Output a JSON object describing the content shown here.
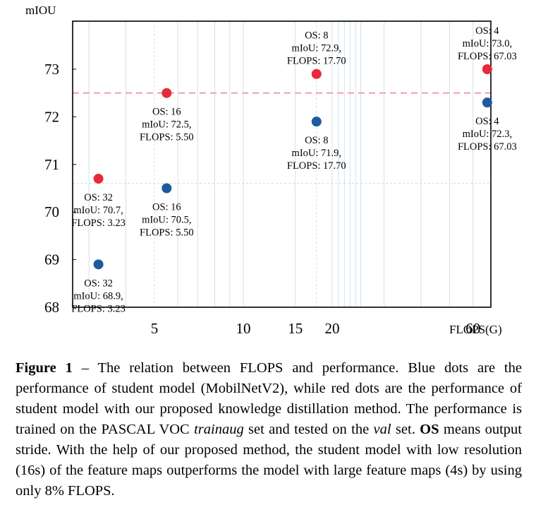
{
  "chart_data": {
    "type": "scatter",
    "ylabel": "mIOU",
    "xlabel": "FLOPS(G)",
    "ylim": [
      68,
      74
    ],
    "yticks": [
      "68",
      "69",
      "70",
      "71",
      "72",
      "73"
    ],
    "xticks": [
      "5",
      "10",
      "15",
      "20",
      "60"
    ],
    "grid": "light dashed",
    "colors": {
      "student": "#1f5aa0",
      "distilled": "#e8293a",
      "ref_line": "#f4a3a8",
      "grid": "#c4dcec"
    },
    "points": [
      {
        "series": "student",
        "x": 3.23,
        "y": 68.9,
        "label": [
          "OS: 32",
          "mIoU: 68.9,",
          "FLOPS: 3.23"
        ]
      },
      {
        "series": "distilled",
        "x": 3.23,
        "y": 70.7,
        "label": [
          "OS: 32",
          "mIoU: 70.7,",
          "FLOPS: 3.23"
        ]
      },
      {
        "series": "student",
        "x": 5.5,
        "y": 70.5,
        "label": [
          "OS: 16",
          "mIoU: 70.5,",
          "FLOPS: 5.50"
        ]
      },
      {
        "series": "distilled",
        "x": 5.5,
        "y": 72.5,
        "label": [
          "OS: 16",
          "mIoU: 72.5,",
          "FLOPS: 5.50"
        ]
      },
      {
        "series": "student",
        "x": 17.7,
        "y": 71.9,
        "label": [
          "OS: 8",
          "mIoU: 71.9,",
          "FLOPS: 17.70"
        ]
      },
      {
        "series": "distilled",
        "x": 17.7,
        "y": 72.9,
        "label": [
          "OS: 8",
          "mIoU: 72.9,",
          "FLOPS: 17.70"
        ]
      },
      {
        "series": "student",
        "x": 67.03,
        "y": 72.3,
        "label": [
          "OS: 4",
          "mIoU: 72.3,",
          "FLOPS: 67.03"
        ]
      },
      {
        "series": "distilled",
        "x": 67.03,
        "y": 73.0,
        "label": [
          "OS: 4",
          "mIoU: 73.0,",
          "FLOPS: 67.03"
        ]
      }
    ],
    "reference_lines": [
      72.5
    ]
  },
  "caption": {
    "label": "Figure 1",
    "dash": " – ",
    "t1": "The relation between FLOPS and performance. Blue dots are the performance of student model (MobilNetV2), while red dots are the performance of student model with our proposed knowledge distillation method. The performance is trained on the PASCAL VOC ",
    "i1": "trainaug",
    "t2": " set and tested on the ",
    "i2": "val",
    "t3": " set. ",
    "b2": "OS",
    "t4": " means output stride. With the help of our proposed method, the student model with low resolution (16s) of the feature maps outperforms the model with large feature maps (4s) by using only 8% FLOPS."
  }
}
